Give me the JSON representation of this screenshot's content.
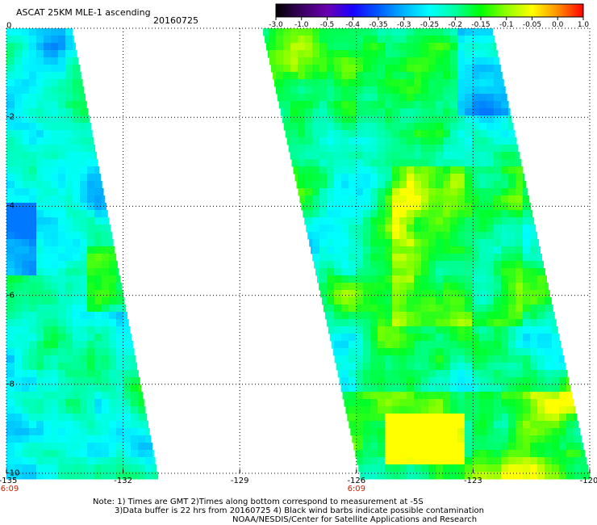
{
  "header": {
    "title": "ASCAT 25KM MLE-1 ascending",
    "date": "20160725"
  },
  "colorbar": {
    "labels": [
      "-3.0",
      "-1.0",
      "-0.5",
      "-0.4",
      "-0.35",
      "-0.3",
      "-0.25",
      "-0.2",
      "-0.15",
      "-0.1",
      "-0.05",
      "0.0",
      "1.0"
    ],
    "colors": [
      "#000000",
      "#3a0060",
      "#6a00b0",
      "#1a00ff",
      "#005aff",
      "#00b4ff",
      "#00ffff",
      "#00ffa0",
      "#00ff00",
      "#90ff00",
      "#ffff00",
      "#ff9000",
      "#ff0000"
    ]
  },
  "map": {
    "x_ticks": [
      "-135",
      "-132",
      "-129",
      "-126",
      "-123",
      "-120"
    ],
    "x_tick_values": [
      -135,
      -132,
      -129,
      -126,
      -123,
      -120
    ],
    "y_ticks": [
      "0",
      "-2",
      "-4",
      "-6",
      "-8",
      "-10"
    ],
    "y_tick_values": [
      0,
      -2,
      -4,
      -6,
      -8,
      -10
    ],
    "time_labels": [
      {
        "text": "6:09",
        "lon": -135
      },
      {
        "text": "6:09",
        "lon": -126
      }
    ],
    "lon_range": [
      -135,
      -120
    ],
    "lat_range": [
      0,
      -10
    ],
    "grid": "dotted",
    "swaths": [
      {
        "name": "west",
        "lat_top": 0,
        "lat_bottom": -10,
        "lon_left": -135,
        "lon_right_top": -133.3,
        "lon_right_bottom": -131.1
      },
      {
        "name": "east",
        "lat_top": 0,
        "lat_bottom": -10,
        "lon_left_top": -128.4,
        "lon_left_bottom": -125.9,
        "lon_right_top": -122.5,
        "lon_right_bottom": -120
      }
    ]
  },
  "notes": {
    "line1": "Note: 1) Times are GMT 2)Times along bottom correspond to measurement at -5S",
    "line2": "3)Data buffer is 22 hrs from 20160725 4) Black wind barbs indicate possible contamination",
    "line3": "NOAA/NESDIS/Center for Satellite Applications and Research"
  }
}
